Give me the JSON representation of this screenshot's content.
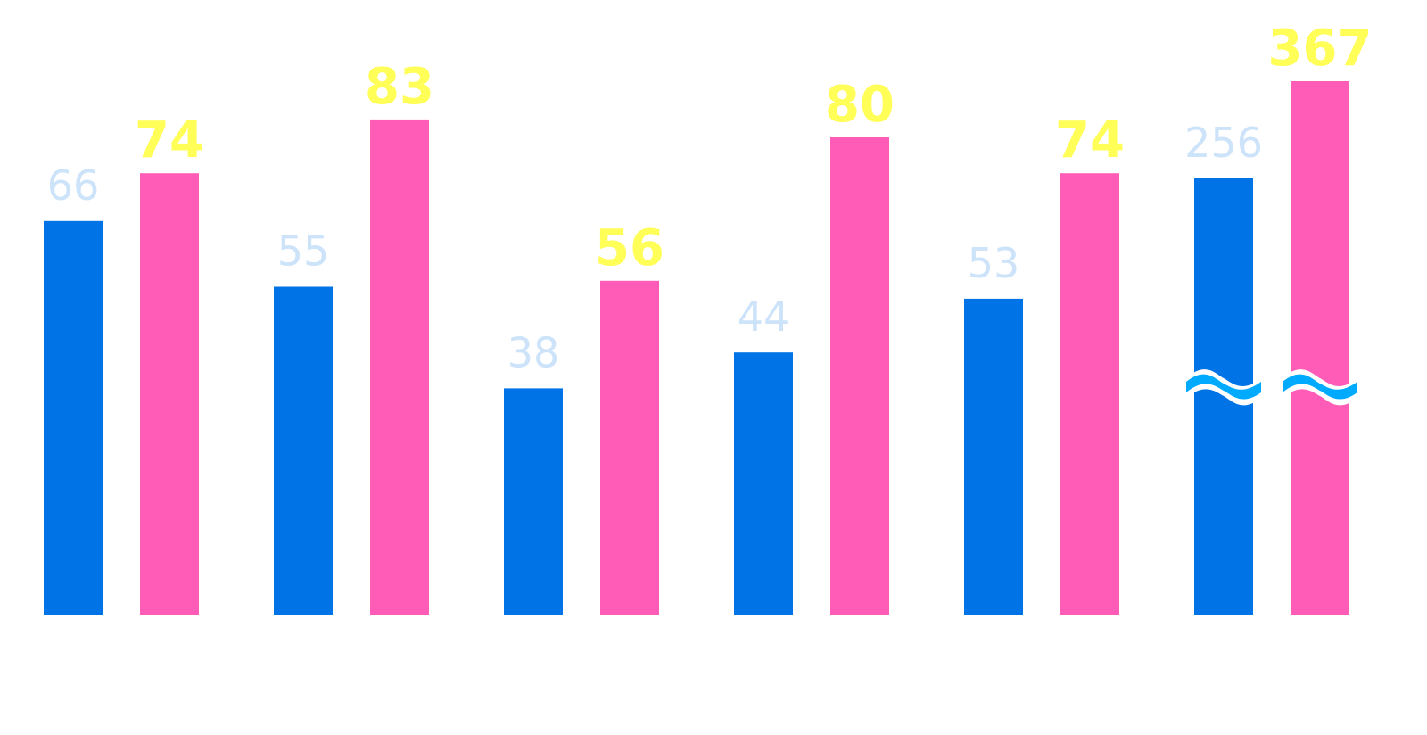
{
  "chart_data": {
    "type": "bar",
    "categories": [
      "",
      "",
      "",
      "",
      "",
      ""
    ],
    "series": [
      {
        "values": [
          66,
          55,
          38,
          44,
          53,
          256
        ],
        "color": "#0073e6",
        "label_color": "#cce3fa"
      },
      {
        "values": [
          74,
          83,
          56,
          80,
          74,
          367
        ],
        "color": "#ff5cb8",
        "label_color": "#ffff57"
      }
    ],
    "ylim": [
      0,
      120
    ],
    "axis_break": true,
    "break_marker_color": "#00aaff",
    "grid": false,
    "legend": "none",
    "title": "",
    "xlabel": "",
    "ylabel": ""
  }
}
